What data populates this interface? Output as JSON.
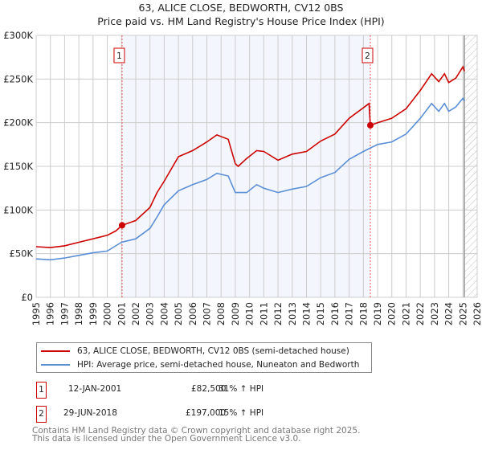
{
  "chart_data": {
    "type": "line",
    "title": "63, ALICE CLOSE, BEDWORTH, CV12 0BS",
    "subtitle": "Price paid vs. HM Land Registry's House Price Index (HPI)",
    "xlim": [
      1995,
      2026
    ],
    "ylim": [
      0,
      300000
    ],
    "x_ticks": [
      "1995",
      "1996",
      "1997",
      "1998",
      "1999",
      "2000",
      "2001",
      "2002",
      "2003",
      "2004",
      "2005",
      "2006",
      "2007",
      "2008",
      "2009",
      "2010",
      "2011",
      "2012",
      "2013",
      "2014",
      "2015",
      "2016",
      "2017",
      "2018",
      "2019",
      "2020",
      "2021",
      "2022",
      "2023",
      "2024",
      "2025",
      "2026"
    ],
    "y_ticks": [
      {
        "v": 0,
        "label": "£0"
      },
      {
        "v": 50000,
        "label": "£50K"
      },
      {
        "v": 100000,
        "label": "£100K"
      },
      {
        "v": 150000,
        "label": "£150K"
      },
      {
        "v": 200000,
        "label": "£200K"
      },
      {
        "v": 250000,
        "label": "£250K"
      },
      {
        "v": 300000,
        "label": "£300K"
      }
    ],
    "grid": true,
    "shaded_period": [
      2001.04,
      2018.49
    ],
    "forecast_after": 2025.1,
    "series": [
      {
        "name": "63, ALICE CLOSE, BEDWORTH, CV12 0BS (semi-detached house)",
        "color": "#cc0000",
        "x": [
          1995,
          1996,
          1997,
          1998,
          1999,
          2000,
          2000.6,
          2001.04,
          2002,
          2003,
          2003.5,
          2004,
          2005,
          2006,
          2007,
          2007.7,
          2008.5,
          2009,
          2009.2,
          2009.8,
          2010.5,
          2011,
          2012,
          2013,
          2014,
          2015,
          2016,
          2017,
          2018.4,
          2018.49,
          2019,
          2020,
          2021,
          2022,
          2022.8,
          2023.3,
          2023.7,
          2024,
          2024.5,
          2025,
          2025.1
        ],
        "y": [
          58000,
          57000,
          59000,
          63000,
          67000,
          71000,
          76000,
          82500,
          88000,
          103000,
          120000,
          133000,
          161000,
          168000,
          178000,
          186000,
          181000,
          153000,
          150000,
          159000,
          168000,
          167000,
          157000,
          164000,
          167000,
          179000,
          187000,
          205000,
          222000,
          197000,
          200000,
          205000,
          216000,
          237000,
          256000,
          247000,
          256000,
          246000,
          251000,
          264000,
          259000
        ]
      },
      {
        "name": "HPI: Average price, semi-detached house, Nuneaton and Bedworth",
        "color": "#5b8fd6",
        "x": [
          1995,
          1996,
          1997,
          1998,
          1999,
          2000,
          2001,
          2002,
          2003,
          2003.5,
          2004,
          2005,
          2006,
          2007,
          2007.7,
          2008.5,
          2009,
          2009.8,
          2010.5,
          2011,
          2012,
          2013,
          2014,
          2015,
          2016,
          2017,
          2018,
          2019,
          2020,
          2021,
          2022,
          2022.8,
          2023.3,
          2023.7,
          2024,
          2024.5,
          2025,
          2025.1
        ],
        "y": [
          44000,
          43000,
          45000,
          48000,
          51000,
          53000,
          63000,
          67000,
          79000,
          92000,
          106000,
          122000,
          129000,
          135000,
          142000,
          139000,
          120000,
          120000,
          129000,
          125000,
          120000,
          124000,
          127000,
          137000,
          143000,
          158000,
          167000,
          175000,
          178000,
          187000,
          205000,
          222000,
          213000,
          222000,
          213000,
          218000,
          228000,
          225000
        ]
      }
    ],
    "sales": [
      {
        "label": "1",
        "x": 2001.04,
        "y": 82500
      },
      {
        "label": "2",
        "x": 2018.49,
        "y": 197000
      }
    ]
  },
  "legend": {
    "property": "63, ALICE CLOSE, BEDWORTH, CV12 0BS (semi-detached house)",
    "hpi": "HPI: Average price, semi-detached house, Nuneaton and Bedworth"
  },
  "transactions": [
    {
      "num": "1",
      "date": "12-JAN-2001",
      "price": "£82,500",
      "delta": "31% ↑ HPI"
    },
    {
      "num": "2",
      "date": "29-JUN-2018",
      "price": "£197,000",
      "delta": "15% ↑ HPI"
    }
  ],
  "footer": {
    "line1": "Contains HM Land Registry data © Crown copyright and database right 2025.",
    "line2": "This data is licensed under the Open Government Licence v3.0."
  }
}
